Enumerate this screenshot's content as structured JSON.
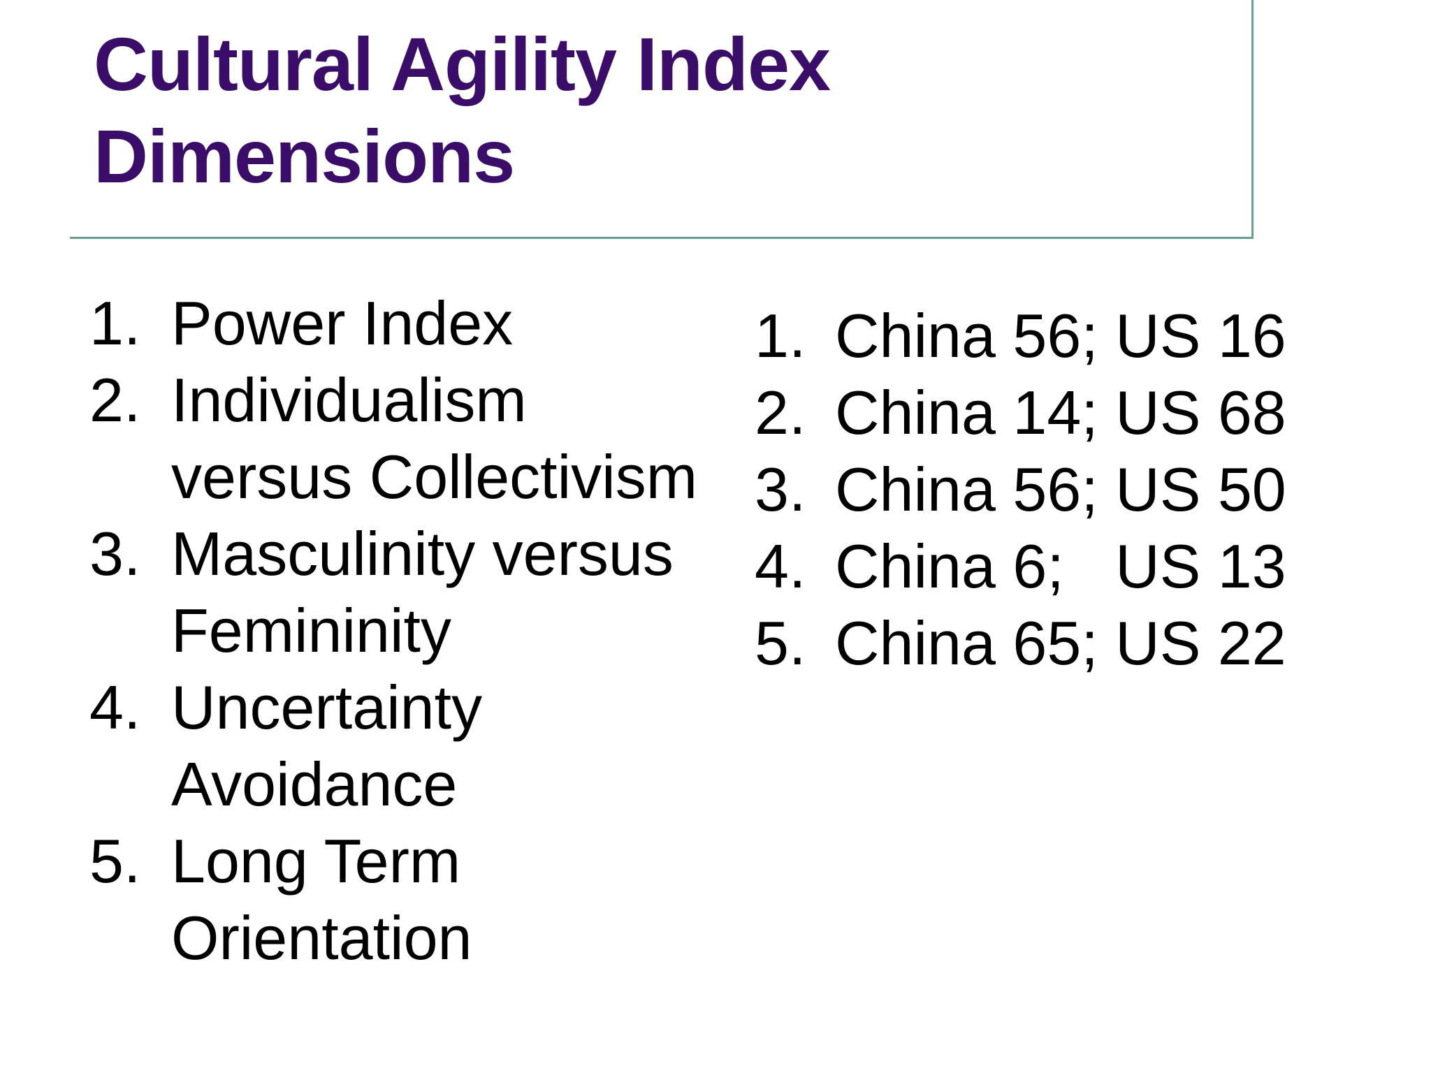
{
  "slide": {
    "title": "Cultural Agility Index\nDimensions"
  },
  "lists": {
    "dimensions": {
      "items": [
        {
          "num": "1.",
          "text": "Power Index"
        },
        {
          "num": "2.",
          "text": "Individualism\nversus Collectivism"
        },
        {
          "num": "3.",
          "text": "Masculinity versus\nFemininity"
        },
        {
          "num": "4.",
          "text": "Uncertainty\nAvoidance"
        },
        {
          "num": "5.",
          "text": "Long Term\nOrientation"
        }
      ]
    },
    "scores": {
      "items": [
        {
          "num": "1.",
          "text": "China 56; US 16"
        },
        {
          "num": "2.",
          "text": "China 14; US 68"
        },
        {
          "num": "3.",
          "text": "China 56; US 50"
        },
        {
          "num": "4.",
          "text": "China 6;   US 13"
        },
        {
          "num": "5.",
          "text": "China 65; US 22"
        }
      ]
    }
  },
  "colors": {
    "title": "#3A0D68",
    "border": "#6B9C96",
    "text": "#000000",
    "background": "#FFFFFF"
  }
}
